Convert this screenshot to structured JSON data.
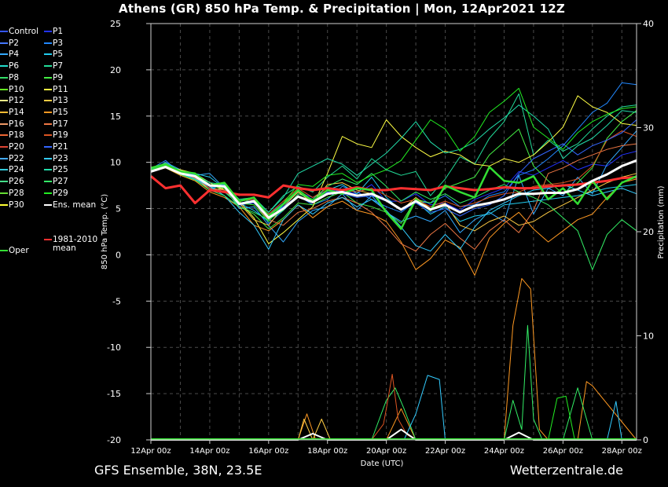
{
  "title": "Athens  (GR)  850 hPa Temp. & Precipitation | Mon, 12Apr2021 12Z",
  "footer": {
    "source": "GFS Ensemble, 38N, 23.5E",
    "site": "Wetterzentrale.de"
  },
  "colors": {
    "background": "#000000",
    "grid": "#555555",
    "ens_mean": "#ffffff",
    "climate_mean": "#ff3030",
    "oper": "#33dd33",
    "control": "#3355ff"
  },
  "legend": [
    {
      "label": "Control",
      "color": "#3355ff"
    },
    {
      "label": "P1",
      "color": "#2233ff"
    },
    {
      "label": "P2",
      "color": "#4477ff"
    },
    {
      "label": "P3",
      "color": "#2288ff"
    },
    {
      "label": "P4",
      "color": "#33aaff"
    },
    {
      "label": "P5",
      "color": "#22ccee"
    },
    {
      "label": "P6",
      "color": "#22ddcc"
    },
    {
      "label": "P7",
      "color": "#22dd99"
    },
    {
      "label": "P8",
      "color": "#33dd66"
    },
    {
      "label": "P9",
      "color": "#44ee44"
    },
    {
      "label": "P10",
      "color": "#66ee22"
    },
    {
      "label": "P11",
      "color": "#ffff44"
    },
    {
      "label": "P12",
      "color": "#eeee88"
    },
    {
      "label": "P13",
      "color": "#ffcc44"
    },
    {
      "label": "P14",
      "color": "#ffbb33"
    },
    {
      "label": "P15",
      "color": "#ff9922"
    },
    {
      "label": "P16",
      "color": "#ee9966"
    },
    {
      "label": "P17",
      "color": "#ee7744"
    },
    {
      "label": "P18",
      "color": "#ee6633"
    },
    {
      "label": "P19",
      "color": "#dd5522"
    },
    {
      "label": "P20",
      "color": "#dd4433"
    },
    {
      "label": "P21",
      "color": "#3366ff"
    },
    {
      "label": "P22",
      "color": "#44aaff"
    },
    {
      "label": "P23",
      "color": "#33ccff"
    },
    {
      "label": "P24",
      "color": "#33ccdd"
    },
    {
      "label": "P25",
      "color": "#22ddaa"
    },
    {
      "label": "P26",
      "color": "#44dd88"
    },
    {
      "label": "P27",
      "color": "#33ee66"
    },
    {
      "label": "P28",
      "color": "#66dd33"
    },
    {
      "label": "P29",
      "color": "#22ee22"
    },
    {
      "label": "P30",
      "color": "#ffff33"
    },
    {
      "label": "Ens. mean",
      "color": "#ffffff"
    },
    {
      "label": "1981-2010 mean",
      "color": "#ff3030"
    },
    {
      "label": "Oper",
      "color": "#33dd33"
    }
  ],
  "chart_data": {
    "type": "line",
    "xlabel": "Date (UTC)",
    "ylabel": "850 hPa Temp. (°C)",
    "ylabel_right": "Precipitation (mm)",
    "xlim": [
      0,
      16.5
    ],
    "ylim": [
      -20,
      25
    ],
    "ylim_right": [
      0,
      40
    ],
    "x_ticks": [
      {
        "x": 0,
        "label": "12Apr 00z"
      },
      {
        "x": 2,
        "label": "14Apr 00z"
      },
      {
        "x": 4,
        "label": "16Apr 00z"
      },
      {
        "x": 6,
        "label": "18Apr 00z"
      },
      {
        "x": 8,
        "label": "20Apr 00z"
      },
      {
        "x": 10,
        "label": "22Apr 00z"
      },
      {
        "x": 12,
        "label": "24Apr 00z"
      },
      {
        "x": 14,
        "label": "26Apr 00z"
      },
      {
        "x": 16,
        "label": "28Apr 00z"
      }
    ],
    "y_ticks": [
      25,
      20,
      15,
      10,
      5,
      0,
      -5,
      -10,
      -15,
      -20
    ],
    "y_ticks_right": [
      40,
      30,
      20,
      10,
      0
    ],
    "grid": true,
    "climate_mean": {
      "name": "1981-2010 mean",
      "x": [
        0.0,
        0.5,
        1.0,
        1.5,
        2.0,
        2.5,
        3.0,
        3.5,
        4.0,
        4.5,
        5.0,
        5.5,
        6.0,
        6.5,
        7.0,
        7.5,
        8.0,
        8.5,
        9.0,
        9.5,
        10.0,
        10.5,
        11.0,
        11.5,
        12.0,
        12.5,
        13.0,
        13.5,
        14.0,
        14.5,
        15.0,
        15.5,
        16.0,
        16.5
      ],
      "y": [
        8.5,
        7.2,
        7.5,
        5.6,
        7.0,
        6.8,
        6.5,
        6.5,
        6.2,
        7.5,
        7.2,
        7.0,
        7.2,
        7.0,
        7.3,
        7.0,
        7.0,
        7.2,
        7.1,
        7.0,
        7.4,
        7.2,
        7.0,
        7.1,
        7.3,
        7.2,
        7.2,
        7.4,
        7.5,
        7.6,
        7.8,
        8.0,
        8.3,
        8.4
      ]
    },
    "ens_mean": {
      "name": "Ens. mean",
      "x": [
        0.0,
        0.5,
        1.0,
        1.5,
        2.0,
        2.5,
        3.0,
        3.5,
        4.0,
        4.5,
        5.0,
        5.5,
        6.0,
        6.5,
        7.0,
        7.5,
        8.0,
        8.5,
        9.0,
        9.5,
        10.0,
        10.5,
        11.0,
        11.5,
        12.0,
        12.5,
        13.0,
        13.5,
        14.0,
        14.5,
        15.0,
        15.5,
        16.0,
        16.5
      ],
      "y": [
        9.0,
        9.5,
        8.8,
        8.5,
        7.5,
        7.4,
        5.5,
        5.8,
        4.0,
        5.0,
        6.3,
        5.7,
        6.6,
        6.8,
        6.4,
        6.6,
        5.9,
        4.9,
        5.8,
        4.9,
        5.4,
        4.6,
        5.3,
        5.6,
        6.0,
        6.6,
        6.6,
        6.7,
        6.7,
        7.1,
        8.0,
        8.7,
        9.6,
        10.2
      ]
    },
    "oper": {
      "name": "Oper",
      "x": [
        0.0,
        0.5,
        1.0,
        1.5,
        2.0,
        2.5,
        3.0,
        3.5,
        4.0,
        4.5,
        5.0,
        5.5,
        6.0,
        6.5,
        7.0,
        7.5,
        8.0,
        8.5,
        9.0,
        9.5,
        10.0,
        10.5,
        11.0,
        11.5,
        12.0,
        12.5,
        13.0,
        13.5,
        14.0,
        14.5,
        15.0,
        15.5,
        16.0,
        16.5
      ],
      "y": [
        9.4,
        9.8,
        9.0,
        8.8,
        7.5,
        7.8,
        5.8,
        6.2,
        4.2,
        5.5,
        7.0,
        5.8,
        7.0,
        6.6,
        7.2,
        7.0,
        4.6,
        2.8,
        6.0,
        4.8,
        7.5,
        6.8,
        6.2,
        9.5,
        8.0,
        7.8,
        8.5,
        6.0,
        7.2,
        5.5,
        8.0,
        6.0,
        7.8,
        8.5
      ]
    },
    "members": [
      {
        "name": "P1",
        "color": "#2233ff",
        "y": [
          9.2,
          9.6,
          9.0,
          8.4,
          7.2,
          7.6,
          5.2,
          6.0,
          4.4,
          5.6,
          6.8,
          6.2,
          7.0,
          6.9,
          6.6,
          7.6,
          5.8,
          5.8,
          6.6,
          5.4,
          5.6,
          4.8,
          6.0,
          6.6,
          7.2,
          9.0,
          8.6,
          9.4,
          10.2,
          9.2,
          9.8,
          9.6,
          10.8,
          11.2
        ]
      },
      {
        "name": "P3",
        "color": "#2288ff",
        "y": [
          9.3,
          10.2,
          8.8,
          8.2,
          7.0,
          7.8,
          5.6,
          5.9,
          3.4,
          4.8,
          6.4,
          5.4,
          6.0,
          7.4,
          6.8,
          6.0,
          5.2,
          4.6,
          5.8,
          5.6,
          6.4,
          5.2,
          5.4,
          6.4,
          6.8,
          8.6,
          9.2,
          10.4,
          11.8,
          13.6,
          15.4,
          16.4,
          18.6,
          18.4
        ]
      },
      {
        "name": "P4",
        "color": "#33aaff",
        "y": [
          9.1,
          10.0,
          9.2,
          8.6,
          8.8,
          7.2,
          5.0,
          5.2,
          3.2,
          1.4,
          3.6,
          4.8,
          5.2,
          6.6,
          4.8,
          6.4,
          4.6,
          3.6,
          4.2,
          3.6,
          4.8,
          2.4,
          3.8,
          4.6,
          3.6,
          8.6,
          4.4,
          7.2,
          6.4,
          8.4,
          6.6,
          9.8,
          11.6,
          13.4
        ]
      },
      {
        "name": "P5",
        "color": "#22ccee",
        "y": [
          9.2,
          9.6,
          9.0,
          8.8,
          8.4,
          7.2,
          5.6,
          4.8,
          3.6,
          5.4,
          6.8,
          5.6,
          7.0,
          7.6,
          6.6,
          8.4,
          6.2,
          4.8,
          5.8,
          4.4,
          5.2,
          3.6,
          4.2,
          4.4,
          5.4,
          5.6,
          5.8,
          6.0,
          6.2,
          6.4,
          6.8,
          7.2,
          7.4,
          7.6
        ]
      },
      {
        "name": "P7",
        "color": "#22dd99",
        "y": [
          9.0,
          9.8,
          8.8,
          8.4,
          7.4,
          6.8,
          5.4,
          6.2,
          4.6,
          6.4,
          7.4,
          6.8,
          8.4,
          9.6,
          8.2,
          10.4,
          9.2,
          8.6,
          9.0,
          6.4,
          8.2,
          10.6,
          9.8,
          12.6,
          14.4,
          17.4,
          10.8,
          12.4,
          11.2,
          12.0,
          13.6,
          15.0,
          16.0,
          16.2
        ]
      },
      {
        "name": "P9",
        "color": "#44ee44",
        "y": [
          9.3,
          9.4,
          8.6,
          8.0,
          7.6,
          7.0,
          5.2,
          4.4,
          2.8,
          4.0,
          5.6,
          5.4,
          6.2,
          6.8,
          5.6,
          5.2,
          4.6,
          3.4,
          6.0,
          5.6,
          7.2,
          7.8,
          8.4,
          10.8,
          12.2,
          13.6,
          9.6,
          8.0,
          6.6,
          7.8,
          9.4,
          12.6,
          14.4,
          15.6
        ]
      },
      {
        "name": "P11",
        "color": "#ffff44",
        "y": [
          9.0,
          9.6,
          9.2,
          8.8,
          7.8,
          7.0,
          5.8,
          4.0,
          1.2,
          2.4,
          3.8,
          5.2,
          8.8,
          12.8,
          12.0,
          11.6,
          14.6,
          12.8,
          11.6,
          10.6,
          11.2,
          10.8,
          9.8,
          9.6,
          10.4,
          10.0,
          10.8,
          12.2,
          13.8,
          17.2,
          16.0,
          15.4,
          14.2,
          14.0
        ]
      },
      {
        "name": "P13",
        "color": "#ffcc44",
        "y": [
          9.2,
          9.8,
          9.0,
          8.4,
          7.0,
          7.2,
          5.6,
          3.8,
          3.2,
          5.2,
          6.8,
          5.6,
          7.6,
          7.8,
          7.0,
          6.6,
          5.8,
          4.8,
          6.2,
          5.0,
          5.6,
          3.2,
          2.6,
          3.6,
          4.2,
          3.2,
          3.6,
          4.6,
          5.4,
          6.2,
          7.0,
          7.8,
          8.4,
          8.8
        ]
      },
      {
        "name": "P15",
        "color": "#ff9922",
        "y": [
          9.0,
          9.4,
          8.6,
          8.0,
          6.8,
          6.2,
          5.2,
          3.2,
          2.6,
          3.8,
          5.4,
          4.0,
          5.2,
          5.8,
          4.8,
          4.4,
          3.6,
          1.4,
          -1.6,
          -0.4,
          1.6,
          0.8,
          -2.2,
          1.8,
          3.4,
          4.6,
          2.8,
          1.4,
          2.6,
          3.8,
          4.4,
          6.2,
          7.8,
          8.2
        ]
      },
      {
        "name": "P17",
        "color": "#ee7744",
        "y": [
          9.1,
          9.5,
          8.9,
          8.3,
          7.2,
          7.0,
          5.6,
          5.4,
          3.8,
          3.2,
          4.6,
          5.0,
          5.8,
          6.2,
          5.6,
          4.6,
          3.0,
          1.2,
          0.4,
          2.2,
          3.4,
          1.8,
          0.6,
          2.6,
          3.8,
          2.4,
          4.8,
          8.8,
          9.4,
          10.2,
          10.8,
          11.4,
          11.8,
          12.0
        ]
      },
      {
        "name": "P19",
        "color": "#dd5522",
        "y": [
          9.2,
          9.7,
          9.1,
          8.5,
          7.4,
          7.4,
          5.8,
          6.0,
          4.4,
          5.8,
          7.2,
          6.2,
          7.2,
          7.0,
          6.8,
          7.2,
          6.4,
          5.6,
          6.0,
          5.2,
          5.8,
          5.2,
          5.6,
          6.2,
          6.6,
          6.8,
          7.4,
          7.6,
          7.8,
          8.2,
          9.6,
          12.4,
          13.4,
          12.8
        ]
      },
      {
        "name": "P21",
        "color": "#3366ff",
        "y": [
          9.2,
          9.8,
          9.0,
          8.6,
          7.6,
          7.2,
          5.4,
          5.6,
          4.0,
          5.2,
          6.4,
          5.6,
          6.8,
          6.6,
          6.2,
          6.4,
          5.8,
          4.8,
          5.6,
          4.6,
          5.0,
          4.2,
          5.0,
          5.4,
          6.4,
          8.8,
          10.4,
          11.2,
          12.0,
          10.8,
          11.8,
          12.4,
          13.2,
          14.6
        ]
      },
      {
        "name": "P23",
        "color": "#33ccff",
        "y": [
          9.0,
          9.6,
          8.8,
          8.2,
          7.4,
          6.4,
          4.6,
          3.2,
          0.6,
          3.8,
          5.4,
          4.4,
          5.6,
          6.2,
          5.2,
          6.0,
          4.8,
          3.0,
          1.0,
          0.4,
          2.2,
          0.6,
          3.0,
          4.8,
          5.6,
          6.4,
          7.0,
          7.2,
          7.6,
          7.0,
          6.4,
          6.8,
          7.2,
          6.6
        ]
      },
      {
        "name": "P25",
        "color": "#22ddaa",
        "y": [
          9.3,
          9.9,
          9.1,
          8.7,
          7.8,
          7.6,
          6.0,
          6.2,
          4.6,
          6.2,
          8.8,
          9.6,
          10.4,
          9.8,
          8.6,
          9.8,
          11.0,
          12.6,
          14.4,
          12.2,
          11.0,
          11.4,
          12.2,
          13.6,
          14.8,
          16.2,
          15.0,
          13.6,
          10.4,
          11.8,
          12.6,
          14.0,
          15.6,
          15.4
        ]
      },
      {
        "name": "P27",
        "color": "#33ee66",
        "y": [
          9.1,
          9.5,
          8.7,
          8.1,
          7.0,
          6.4,
          5.2,
          4.6,
          3.8,
          4.8,
          6.6,
          6.0,
          7.4,
          8.2,
          7.6,
          8.8,
          7.4,
          5.8,
          6.8,
          6.0,
          6.6,
          5.6,
          6.2,
          7.0,
          7.6,
          6.8,
          6.2,
          5.4,
          4.0,
          2.6,
          -1.6,
          2.2,
          3.8,
          2.6
        ]
      },
      {
        "name": "P29",
        "color": "#22ee22",
        "y": [
          9.2,
          9.7,
          8.9,
          8.5,
          7.6,
          7.2,
          5.6,
          5.4,
          3.6,
          5.6,
          7.6,
          7.4,
          8.6,
          8.8,
          7.8,
          8.6,
          9.2,
          10.2,
          12.4,
          14.6,
          13.6,
          11.2,
          12.8,
          15.4,
          16.6,
          18.0,
          13.8,
          12.6,
          11.4,
          13.2,
          14.4,
          15.2,
          15.8,
          16.0
        ]
      }
    ],
    "precip_members": [
      {
        "name": "P15",
        "color": "#ff9922",
        "x": [
          0,
          5.0,
          5.3,
          5.6,
          6.0,
          8.0,
          8.5,
          9.0,
          11.0,
          11.8,
          12.0,
          12.3,
          12.6,
          12.9,
          13.2,
          13.5,
          14.0,
          14.5,
          14.8,
          15.0,
          16.5
        ],
        "y": [
          0,
          0,
          2.5,
          0,
          0,
          0,
          3,
          0,
          0,
          0,
          0,
          11,
          15.5,
          14.5,
          1,
          0,
          0,
          0,
          5.6,
          5.2,
          0
        ]
      },
      {
        "name": "P27",
        "color": "#33ee66",
        "x": [
          0,
          7.5,
          8.0,
          8.3,
          8.6,
          9.0,
          9.3,
          9.6,
          11.0,
          11.8,
          12.0,
          12.3,
          12.6,
          12.8,
          13.0,
          13.3,
          13.6,
          14.0,
          14.5,
          15.0,
          16.5
        ],
        "y": [
          0,
          0,
          3.8,
          5,
          3,
          0,
          0,
          0,
          0,
          0,
          0,
          3.8,
          1,
          11,
          2,
          0,
          0,
          0,
          5,
          0,
          0
        ]
      },
      {
        "name": "P23",
        "color": "#33ccff",
        "x": [
          0,
          8.0,
          8.6,
          9.0,
          9.4,
          9.8,
          10.0,
          11.0,
          15.5,
          15.8,
          16.0,
          16.5
        ],
        "y": [
          0,
          0,
          0,
          2.5,
          6.2,
          5.8,
          0,
          0,
          0,
          3.7,
          0,
          0
        ]
      },
      {
        "name": "P19",
        "color": "#dd5522",
        "x": [
          0,
          7.5,
          7.9,
          8.0,
          8.2,
          8.4,
          8.7,
          9.0,
          16.5
        ],
        "y": [
          0,
          0,
          1.5,
          3,
          6.3,
          2,
          0.5,
          0,
          0
        ]
      },
      {
        "name": "P29",
        "color": "#22ee22",
        "x": [
          0,
          13.2,
          13.5,
          13.8,
          14.1,
          14.4,
          14.7,
          16.5
        ],
        "y": [
          0,
          0,
          0,
          4,
          4.2,
          0,
          0,
          0
        ]
      },
      {
        "name": "P13",
        "color": "#ffcc44",
        "x": [
          0,
          5.0,
          5.2,
          5.5,
          5.8,
          6.1,
          6.4,
          16.5
        ],
        "y": [
          0,
          0,
          2,
          0,
          2,
          0,
          0,
          0
        ]
      }
    ],
    "precip_ens_mean": {
      "name": "Ens. mean",
      "x": [
        0,
        5.0,
        5.5,
        6.0,
        8.0,
        8.5,
        9.0,
        12.0,
        12.5,
        13.0,
        16.5
      ],
      "y": [
        0,
        0,
        0.6,
        0,
        0,
        1,
        0,
        0,
        0.7,
        0,
        0
      ]
    }
  }
}
